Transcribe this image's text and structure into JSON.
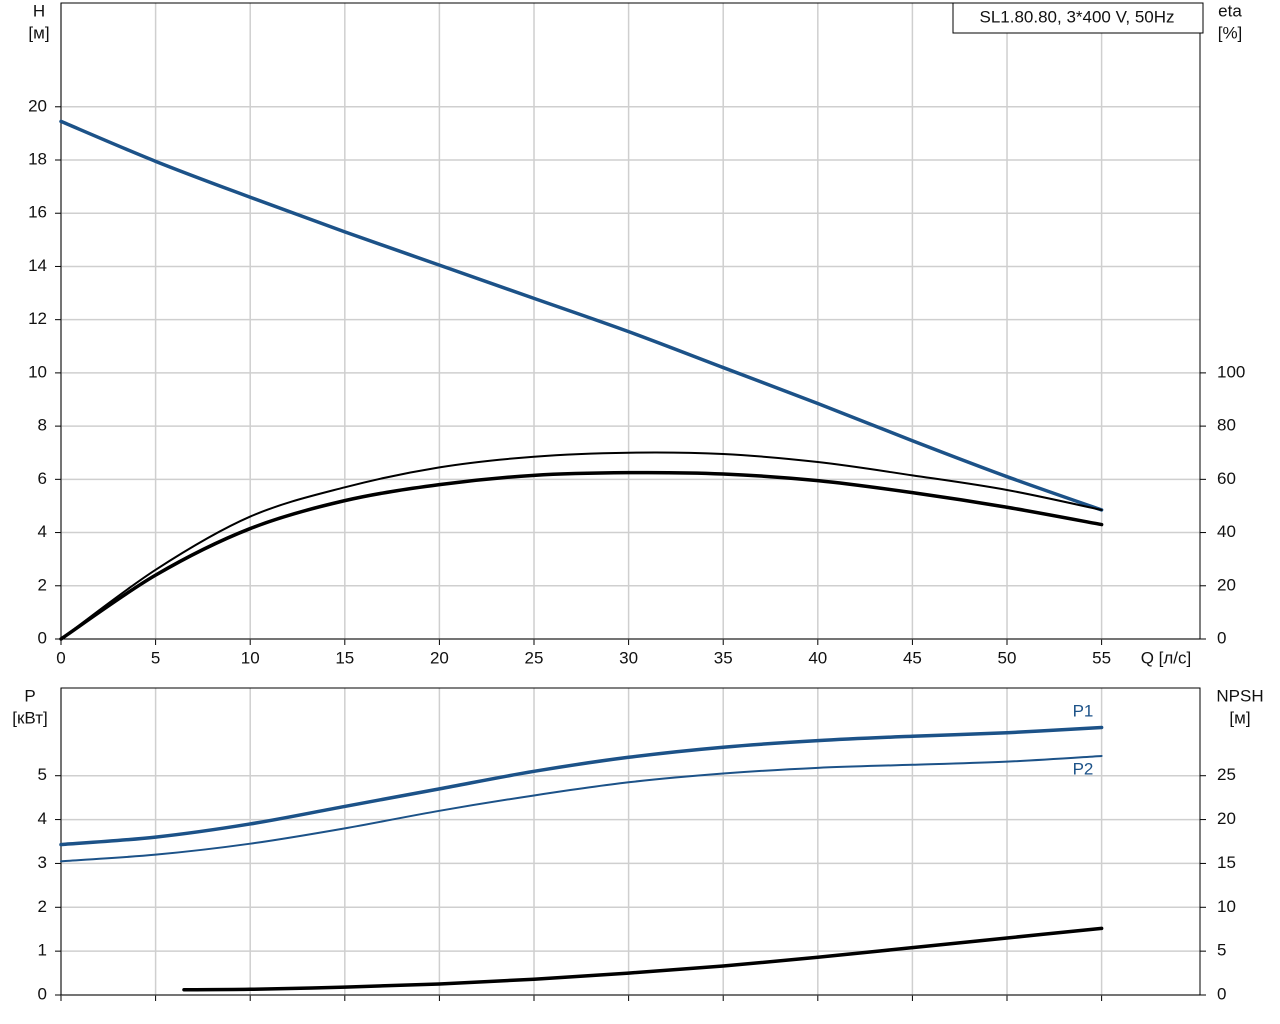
{
  "chart_data": [
    {
      "type": "line",
      "title": "SL1.80.80, 3*400 V, 50Hz",
      "ylabel": [
        "H",
        "[м]"
      ],
      "y2label": [
        "eta",
        "[%]"
      ],
      "xlabel": "Q [л/с]",
      "xlim": [
        0,
        60.2
      ],
      "xticks": [
        0,
        5,
        10,
        15,
        20,
        25,
        30,
        35,
        40,
        45,
        50,
        55
      ],
      "xtick_labels": true,
      "ylim": [
        0,
        23.9
      ],
      "yticks": [
        0,
        2,
        4,
        6,
        8,
        10,
        12,
        14,
        16,
        18,
        20
      ],
      "y2lim": [
        0,
        239
      ],
      "y2ticks": [
        0,
        20,
        40,
        60,
        80,
        100
      ],
      "grid": true,
      "series": [
        {
          "name": "H",
          "color": "#1c5288",
          "line_width": 3.5,
          "x": [
            0,
            5,
            10,
            15,
            20,
            25,
            30,
            35,
            40,
            45,
            50,
            55
          ],
          "values": [
            19.45,
            17.95,
            16.6,
            15.3,
            14.05,
            12.8,
            11.55,
            10.2,
            8.85,
            7.45,
            6.1,
            4.85
          ]
        },
        {
          "name": "eta",
          "color": "#000000",
          "line_width": 2,
          "axis": "y2",
          "x": [
            0,
            5,
            10,
            15,
            20,
            25,
            30,
            35,
            40,
            45,
            50,
            55
          ],
          "values": [
            0,
            26,
            46,
            57,
            64.5,
            68.5,
            70,
            69.5,
            66.5,
            61.5,
            56,
            48.5
          ]
        },
        {
          "name": "eta",
          "color": "#000000",
          "line_width": 3.5,
          "axis": "y2",
          "x": [
            0,
            5,
            10,
            15,
            20,
            25,
            30,
            35,
            40,
            45,
            50,
            55
          ],
          "values": [
            0,
            24,
            41.5,
            52,
            58,
            61.5,
            62.5,
            62,
            59.5,
            55,
            49.5,
            43
          ]
        }
      ]
    },
    {
      "type": "line",
      "ylabel": [
        "P",
        "[кВт]"
      ],
      "y2label": [
        "NPSH",
        "[м]"
      ],
      "xlim": [
        0,
        60.2
      ],
      "xticks": [
        0,
        5,
        10,
        15,
        20,
        25,
        30,
        35,
        40,
        45,
        50,
        55
      ],
      "xtick_labels": false,
      "ylim": [
        0,
        7
      ],
      "yticks": [
        0,
        1,
        2,
        3,
        4,
        5
      ],
      "y2lim": [
        0,
        35
      ],
      "y2ticks": [
        0,
        5,
        10,
        15,
        20,
        25
      ],
      "grid": true,
      "series": [
        {
          "name": "P1",
          "color": "#1c5288",
          "line_width": 3.5,
          "x": [
            0,
            5,
            10,
            15,
            20,
            25,
            30,
            35,
            40,
            45,
            50,
            55
          ],
          "values": [
            3.43,
            3.6,
            3.9,
            4.3,
            4.7,
            5.1,
            5.42,
            5.65,
            5.8,
            5.9,
            5.98,
            6.1
          ]
        },
        {
          "name": "P2",
          "color": "#1c5288",
          "line_width": 2,
          "x": [
            0,
            5,
            10,
            15,
            20,
            25,
            30,
            35,
            40,
            45,
            50,
            55
          ],
          "values": [
            3.05,
            3.2,
            3.45,
            3.8,
            4.2,
            4.55,
            4.85,
            5.05,
            5.18,
            5.25,
            5.32,
            5.45
          ]
        },
        {
          "name": "NPSH",
          "color": "#000000",
          "line_width": 3.5,
          "axis": "y2",
          "x": [
            6.5,
            10,
            15,
            20,
            25,
            30,
            35,
            40,
            45,
            50,
            55
          ],
          "values": [
            0.6,
            0.65,
            0.9,
            1.25,
            1.8,
            2.5,
            3.3,
            4.3,
            5.4,
            6.5,
            7.6
          ]
        }
      ]
    }
  ]
}
